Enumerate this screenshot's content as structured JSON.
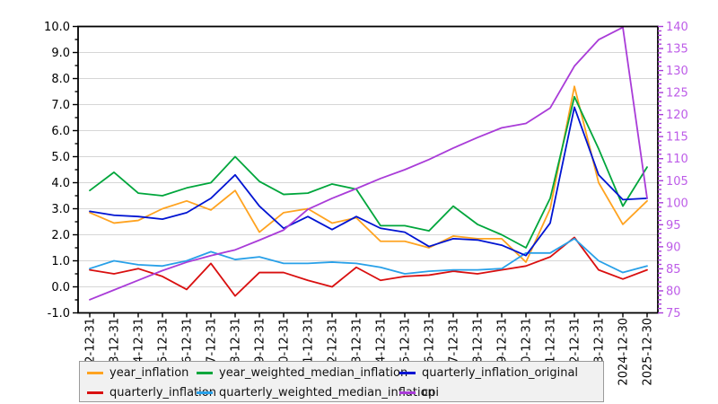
{
  "chart_data": {
    "type": "line",
    "title": "",
    "xlabel": "",
    "ylabel": "",
    "grid": true,
    "legend_position": "bottom",
    "x_labels": [
      "2-12-31",
      "3-12-31",
      "4-12-31",
      "5-12-31",
      "6-12-31",
      "7-12-31",
      "8-12-31",
      "9-12-31",
      "0-12-31",
      "1-12-31",
      "2-12-31",
      "3-12-31",
      "4-12-31",
      "5-12-31",
      "6-12-31",
      "7-12-31",
      "8-12-31",
      "9-12-31",
      "0-12-31",
      "1-12-31",
      "2-12-31",
      "3-12-31",
      "2024-12-30",
      "2025-12-30"
    ],
    "left_axis": {
      "min": -1.0,
      "max": 10.0,
      "major_step": 1.0,
      "minor_step": 0.5,
      "tick_labels": [
        "10.0",
        "9.0",
        "8.0",
        "7.0",
        "6.0",
        "5.0",
        "4.0",
        "3.0",
        "2.0",
        "1.0",
        "0.0",
        "-1.0"
      ],
      "label_color": "#000000"
    },
    "right_axis": {
      "min": 75,
      "max": 140,
      "major_step": 5,
      "minor_step": 1,
      "tick_labels": [
        "140",
        "135",
        "130",
        "125",
        "120",
        "115",
        "110",
        "105",
        "100",
        "95",
        "90",
        "85",
        "80",
        "75"
      ],
      "label_color": "#bd5ce8",
      "tick_color": "#a93cd8"
    },
    "series": [
      {
        "name": "year_inflation",
        "color": "#ffa320",
        "axis": "left",
        "values": [
          2.85,
          2.45,
          2.55,
          3.0,
          3.3,
          2.95,
          3.7,
          2.1,
          2.85,
          3.0,
          2.45,
          2.65,
          1.75,
          1.75,
          1.5,
          1.95,
          1.85,
          1.85,
          0.95,
          3.0,
          7.7,
          4.0,
          2.4,
          3.3
        ]
      },
      {
        "name": "quarterly_inflation",
        "color": "#d90f0f",
        "axis": "left",
        "values": [
          0.65,
          0.5,
          0.7,
          0.4,
          -0.1,
          0.9,
          -0.35,
          0.55,
          0.55,
          0.25,
          0.0,
          0.75,
          0.25,
          0.4,
          0.45,
          0.6,
          0.5,
          0.65,
          0.8,
          1.15,
          1.9,
          0.65,
          0.3,
          0.65
        ]
      },
      {
        "name": "quarterly_weighted_median_inflation",
        "color": "#28a0e8",
        "axis": "left",
        "values": [
          0.7,
          1.0,
          0.85,
          0.8,
          1.0,
          1.35,
          1.05,
          1.15,
          0.9,
          0.9,
          0.95,
          0.9,
          0.75,
          0.5,
          0.6,
          0.65,
          0.65,
          0.7,
          1.3,
          1.3,
          1.85,
          1.0,
          0.55,
          0.8
        ]
      },
      {
        "name": "year_weighted_median_inflation",
        "color": "#00a63c",
        "axis": "left",
        "values": [
          3.7,
          4.4,
          3.6,
          3.5,
          3.8,
          4.0,
          5.0,
          4.05,
          3.55,
          3.6,
          3.95,
          3.75,
          2.35,
          2.35,
          2.15,
          3.1,
          2.4,
          2.0,
          1.5,
          3.4,
          7.3,
          5.3,
          3.1,
          4.6
        ]
      },
      {
        "name": "quarterly_inflation_original",
        "color": "#0014d2",
        "axis": "left",
        "values": [
          2.9,
          2.75,
          2.7,
          2.6,
          2.85,
          3.4,
          4.3,
          3.1,
          2.25,
          2.7,
          2.2,
          2.7,
          2.25,
          2.1,
          1.55,
          1.85,
          1.8,
          1.6,
          1.2,
          2.45,
          6.9,
          4.3,
          3.35,
          3.4
        ]
      },
      {
        "name": "cpi",
        "color": "#a93cd8",
        "axis": "right",
        "values": [
          78.0,
          80.2,
          82.4,
          84.6,
          86.5,
          88.0,
          89.3,
          91.5,
          93.8,
          98.5,
          101.0,
          103.2,
          105.5,
          107.5,
          109.8,
          112.4,
          114.8,
          117.0,
          118.0,
          121.5,
          131.0,
          137.0,
          139.8,
          101.0
        ]
      }
    ],
    "legend_order": [
      "year_inflation",
      "year_weighted_median_inflation",
      "quarterly_inflation_original",
      "quarterly_inflation",
      "quarterly_weighted_median_inflation",
      "cpi"
    ],
    "style": {
      "grid_color": "#d6d6d6",
      "spine_color": "#000000",
      "background": "#ffffff",
      "legend_background": "#f1f1f1",
      "legend_border": "#9a9a9a"
    }
  }
}
